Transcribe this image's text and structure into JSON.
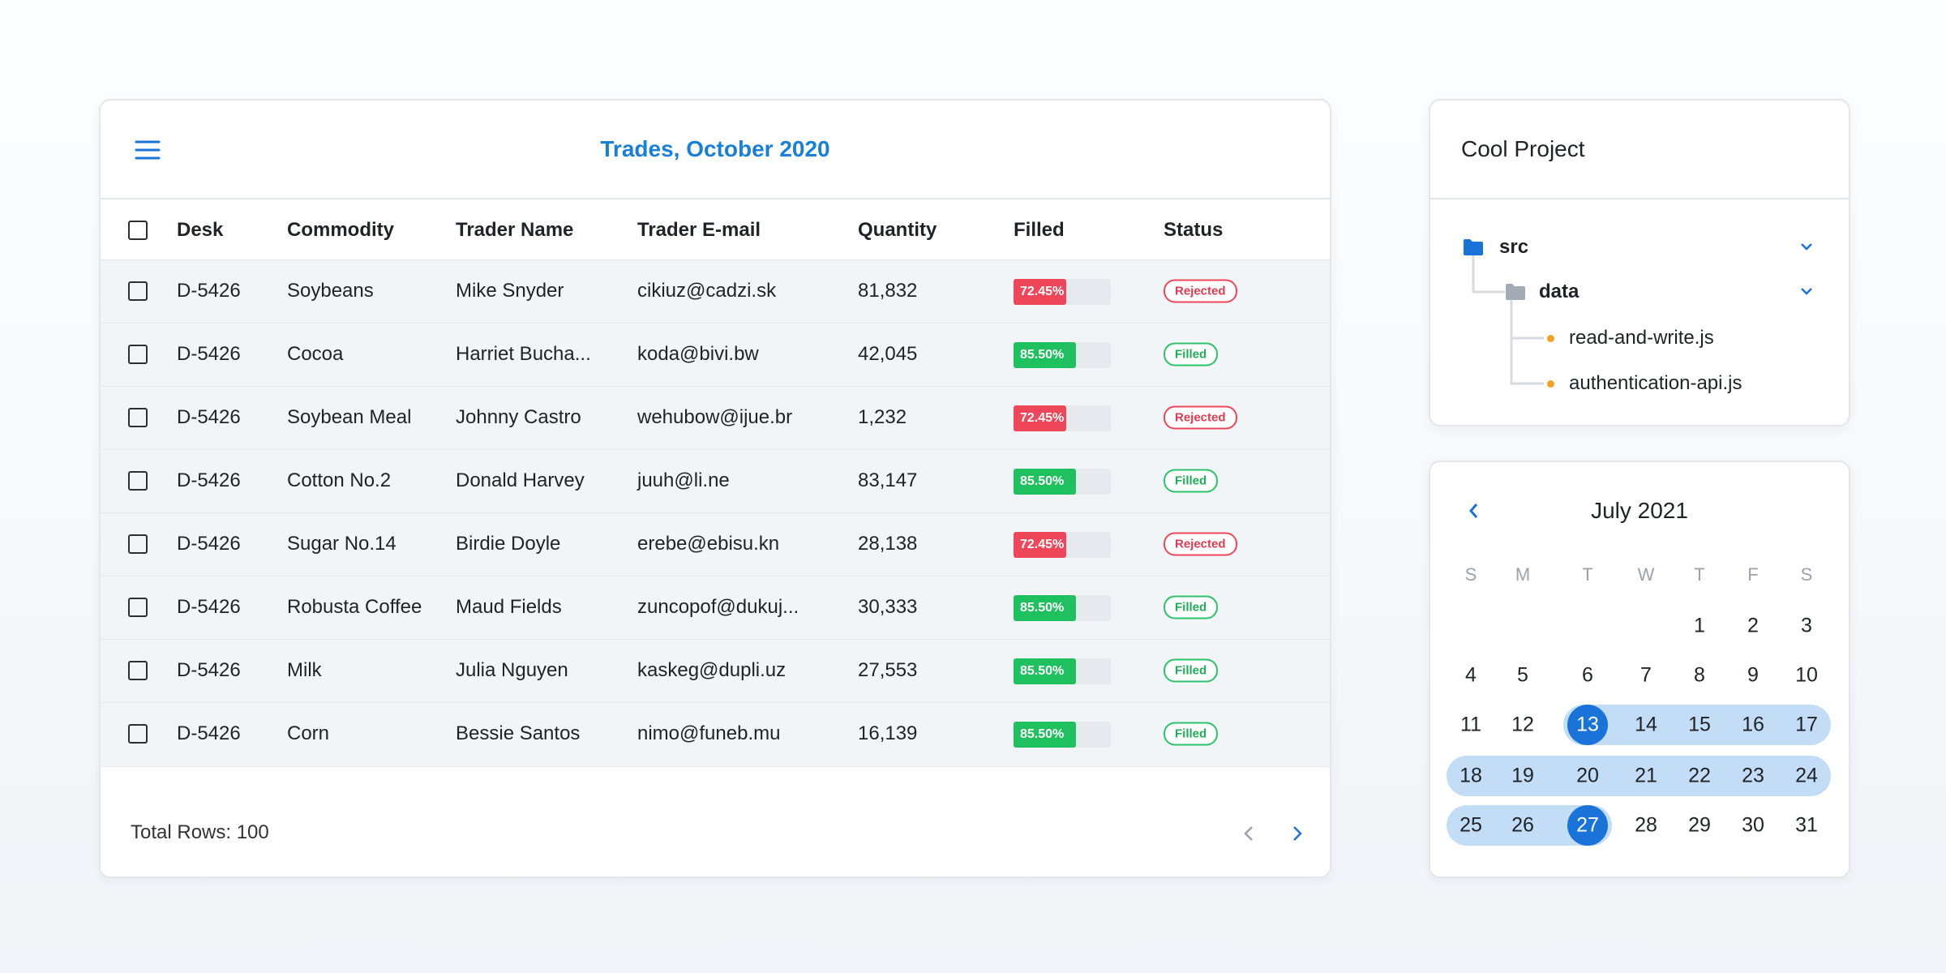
{
  "header": {
    "title": "Trades, October 2020"
  },
  "table": {
    "columns": [
      "Desk",
      "Commodity",
      "Trader Name",
      "Trader E-mail",
      "Quantity",
      "Filled",
      "Status"
    ],
    "rows": [
      [
        "D-5426",
        "Soybeans",
        "Mike Snyder",
        "cikiuz@cadzi.sk",
        "81,832",
        "72.45%",
        "Rejected"
      ],
      [
        "D-5426",
        "Cocoa",
        "Harriet Bucha...",
        "koda@bivi.bw",
        "42,045",
        "85.50%",
        "Filled"
      ],
      [
        "D-5426",
        "Soybean Meal",
        "Johnny Castro",
        "wehubow@ijue.br",
        "1,232",
        "72.45%",
        "Rejected"
      ],
      [
        "D-5426",
        "Cotton No.2",
        "Donald Harvey",
        "juuh@li.ne",
        "83,147",
        "85.50%",
        "Filled"
      ],
      [
        "D-5426",
        "Sugar No.14",
        "Birdie Doyle",
        "erebe@ebisu.kn",
        "28,138",
        "72.45%",
        "Rejected"
      ],
      [
        "D-5426",
        "Robusta Coffee",
        "Maud Fields",
        "zuncopof@dukuj...",
        "30,333",
        "85.50%",
        "Filled"
      ],
      [
        "D-5426",
        "Milk",
        "Julia Nguyen",
        "kaskeg@dupli.uz",
        "27,553",
        "85.50%",
        "Filled"
      ],
      [
        "D-5426",
        "Corn",
        "Bessie Santos",
        "nimo@funeb.mu",
        "16,139",
        "85.50%",
        "Filled"
      ]
    ],
    "footer": "Total Rows: 100"
  },
  "project": {
    "title": "Cool Project",
    "tree": [
      {
        "label": "src",
        "type": "folder",
        "level": 0,
        "expanded": true
      },
      {
        "label": "data",
        "type": "folder",
        "level": 1,
        "expanded": true
      },
      {
        "label": "read-and-write.js",
        "type": "file",
        "level": 2
      },
      {
        "label": "authentication-api.js",
        "type": "file",
        "level": 2
      }
    ]
  },
  "calendar": {
    "title": "July 2021",
    "weekdays": [
      "S",
      "M",
      "T",
      "W",
      "T",
      "F",
      "S"
    ],
    "weeks": [
      [
        null,
        null,
        null,
        null,
        1,
        2,
        3
      ],
      [
        4,
        5,
        6,
        7,
        8,
        9,
        10
      ],
      [
        11,
        12,
        13,
        14,
        15,
        16,
        17
      ],
      [
        18,
        19,
        20,
        21,
        22,
        23,
        24
      ],
      [
        25,
        26,
        27,
        28,
        29,
        30,
        31
      ]
    ],
    "selected": [
      13,
      27
    ]
  }
}
